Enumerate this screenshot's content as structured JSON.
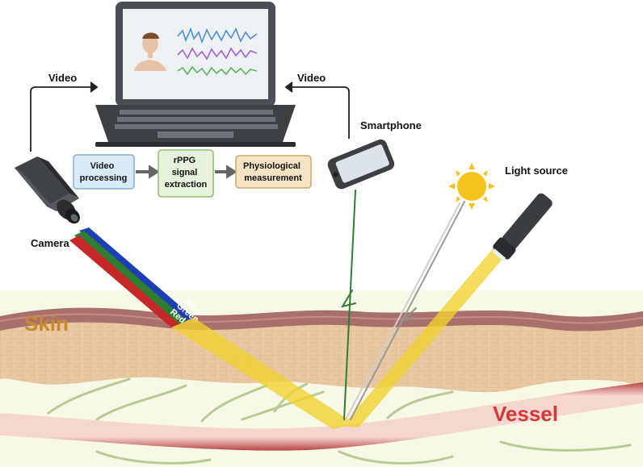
{
  "labels": {
    "video_left": "Video",
    "video_right": "Video",
    "smartphone": "Smartphone",
    "camera": "Camera",
    "light_source": "Light source",
    "skin": "Skin",
    "vessel": "Vessel",
    "beam_blue": "Blue",
    "beam_green": "Green",
    "beam_red": "Red"
  },
  "pipeline": {
    "step1_line1": "Video",
    "step1_line2": "processing",
    "step2_line1": "rPPG",
    "step2_line2": "signal",
    "step2_line3": "extraction",
    "step3_line1": "Physiological",
    "step3_line2": "measurement"
  },
  "colors": {
    "skin_label": "#c98a2e",
    "vessel_label": "#d23a3a",
    "signal_blue": "#4a8fd8",
    "signal_purple": "#a560d8",
    "signal_green": "#5fb65a",
    "light_beam": "#f2d22e",
    "step1": "#dbeaf7",
    "step2": "#e6f2dc",
    "step3": "#f6e3c3"
  },
  "icons": [
    "laptop-icon",
    "camera-icon",
    "smartphone-icon",
    "sun-icon",
    "flashlight-icon",
    "person-avatar-icon"
  ]
}
